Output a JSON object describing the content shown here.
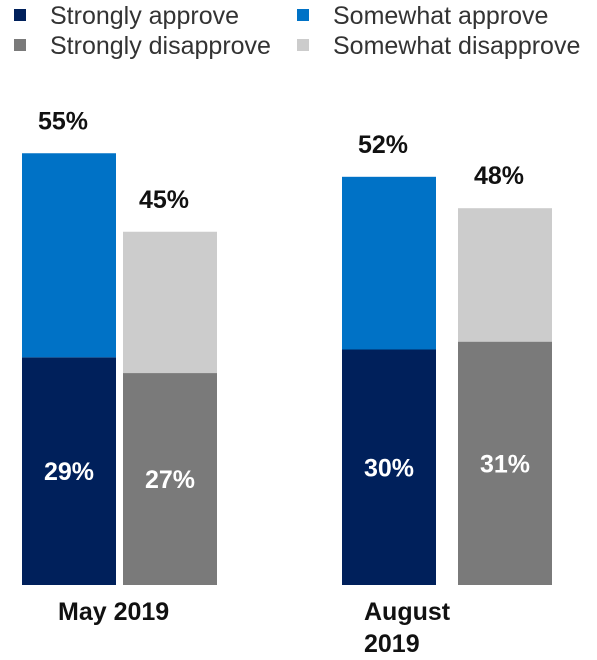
{
  "chart_data": {
    "type": "bar",
    "stacked": true,
    "categories": [
      "May 2019",
      "August 2019"
    ],
    "series": [
      {
        "name": "Strongly approve",
        "values": [
          29,
          30
        ],
        "color": "#00205b"
      },
      {
        "name": "Somewhat approve",
        "values": [
          26,
          22
        ],
        "color": "#0072c6"
      },
      {
        "name": "Strongly disapprove",
        "values": [
          27,
          31
        ],
        "color": "#7a7a7a"
      },
      {
        "name": "Somewhat disapprove",
        "values": [
          18,
          17
        ],
        "color": "#cccccc"
      }
    ],
    "groups": [
      {
        "name": "approve",
        "series": [
          "Strongly approve",
          "Somewhat approve"
        ],
        "totals": [
          "55%",
          "52%"
        ],
        "inner_labels": [
          "29%",
          "30%"
        ]
      },
      {
        "name": "disapprove",
        "series": [
          "Strongly disapprove",
          "Somewhat disapprove"
        ],
        "totals": [
          "45%",
          "48%"
        ],
        "inner_labels": [
          "27%",
          "31%"
        ]
      }
    ],
    "legend_placement": "top",
    "grid": false
  }
}
